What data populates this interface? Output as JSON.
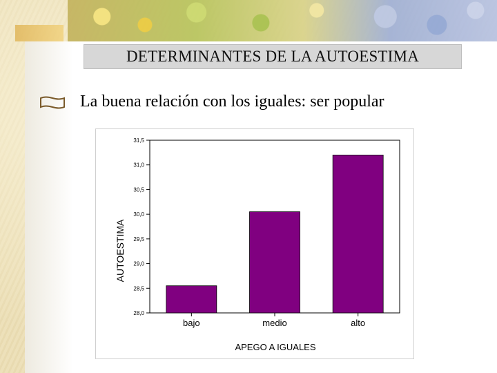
{
  "slide": {
    "title": "DETERMINANTES DE LA AUTOESTIMA",
    "bullet_text": "La buena relación con los iguales: ser popular"
  },
  "colors": {
    "bar": "#800080",
    "title_box": "#d7d7d7",
    "background": "#efe2bb"
  },
  "chart_data": {
    "type": "bar",
    "categories": [
      "bajo",
      "medio",
      "alto"
    ],
    "values": [
      28.55,
      30.05,
      31.2
    ],
    "xlabel": "APEGO A IGUALES",
    "ylabel": "AUTOESTIMA",
    "ylim": [
      28.0,
      31.5
    ],
    "yticks": [
      "28,0",
      "28,5",
      "29,0",
      "29,5",
      "30,0",
      "30,5",
      "31,0",
      "31,5"
    ],
    "grid": false,
    "legend": "none"
  }
}
